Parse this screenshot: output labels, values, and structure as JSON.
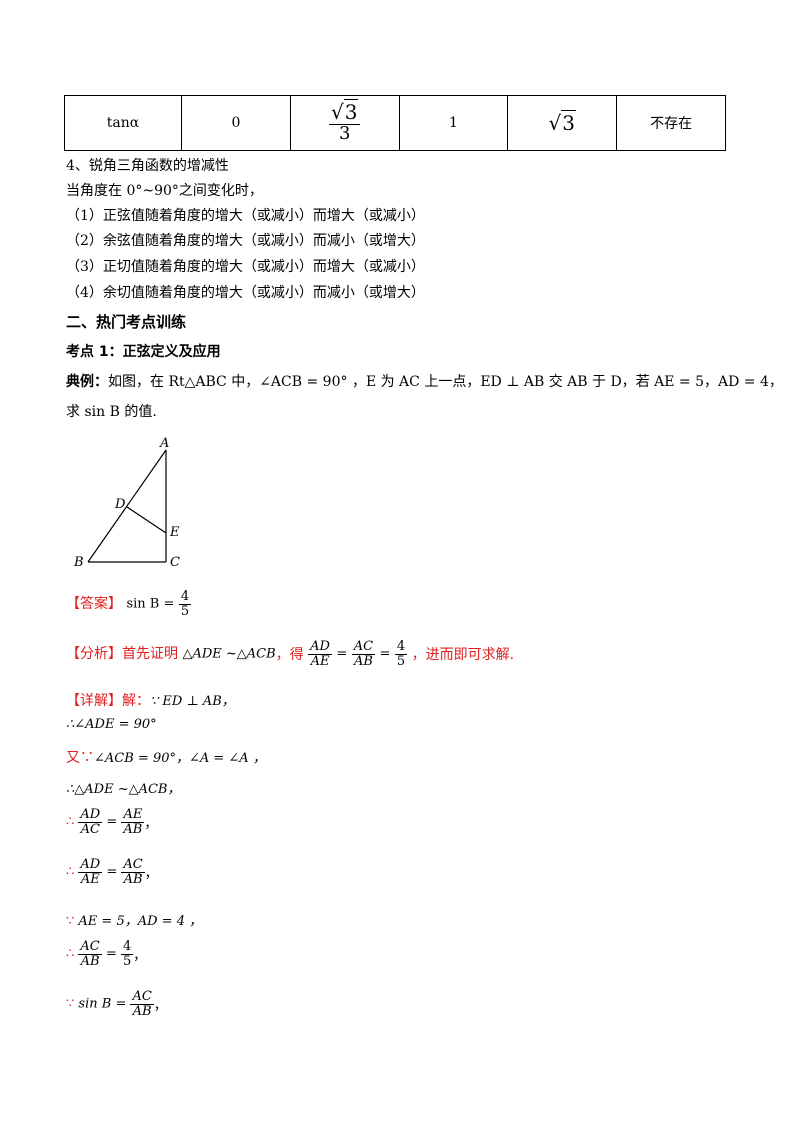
{
  "table": {
    "label": "tanα",
    "v0": "0",
    "v1_num": "3",
    "v1_den": "3",
    "v2": "1",
    "v3": "3",
    "v4": "不存在"
  },
  "section4": {
    "heading": "4、锐角三角函数的增减性",
    "intro": "当角度在 0°~90°之间变化时，",
    "items": [
      "（1）正弦值随着角度的增大（或减小）而增大（或减小）",
      "（2）余弦值随着角度的增大（或减小）而减小（或增大）",
      "（3）正切值随着角度的增大（或减小）而增大（或减小）",
      "（4）余切值随着角度的增大（或减小）而减小（或增大）"
    ]
  },
  "section2": {
    "heading": "二、热门考点训练"
  },
  "point1": {
    "heading": "考点 1：正弦定义及应用"
  },
  "example": {
    "label": "典例：",
    "text_a": "如图，在 Rt△ABC 中，∠ACB = 90° ，E 为 AC 上一点，ED ⊥ AB 交 AB 于 D，若 AE = 5，AD = 4，",
    "text_b": "求 sin B 的值."
  },
  "figure": {
    "A": "A",
    "B": "B",
    "C": "C",
    "D": "D",
    "E": "E"
  },
  "answer": {
    "label": "【答案】",
    "expr": "sin B =",
    "num": "4",
    "den": "5"
  },
  "analysis": {
    "label": "【分析】",
    "text_a": "首先证明",
    "sim": "△ADE ~△ACB",
    "text_b": "，得",
    "f1n": "AD",
    "f1d": "AE",
    "f2n": "AC",
    "f2d": "AB",
    "f3n": "4",
    "f3d": "5",
    "text_c": "，进而即可求解."
  },
  "detail": {
    "label": "【详解】",
    "l1_a": "解：",
    "l1_b": "∵ ED ⊥ AB，",
    "l2": "∴∠ADE = 90°",
    "l3_a": "又∵",
    "l3_b": "∠ACB = 90°，∠A = ∠A ，",
    "l4": "∴△ADE ~△ACB，",
    "l5_sym": "∴",
    "l5": {
      "an": "AD",
      "ad": "AC",
      "bn": "AE",
      "bd": "AB",
      "tail": "，"
    },
    "l6_sym": "∴",
    "l6": {
      "an": "AD",
      "ad": "AE",
      "bn": "AC",
      "bd": "AB",
      "tail": "，"
    },
    "l7_sym": "∵",
    "l7": "AE = 5，AD = 4 ，",
    "l8_sym": "∴",
    "l8": {
      "an": "AC",
      "ad": "AB",
      "bn": "4",
      "bd": "5",
      "tail": "，"
    },
    "l9_sym": "∵",
    "l9": {
      "lhs": "sin B =",
      "an": "AC",
      "ad": "AB",
      "tail": "，"
    }
  }
}
